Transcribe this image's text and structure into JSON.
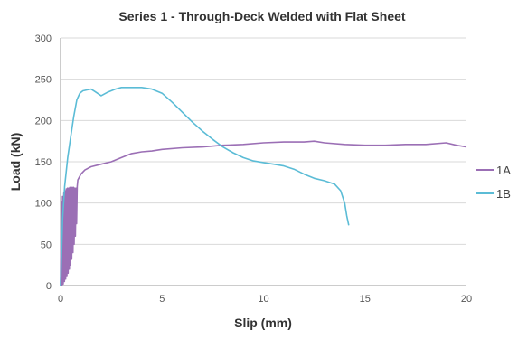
{
  "chart_data": {
    "type": "line",
    "title": "Series 1 - Through-Deck Welded with Flat Sheet",
    "xlabel": "Slip (mm)",
    "ylabel": "Load (kN)",
    "xlim": [
      0,
      20
    ],
    "ylim": [
      0,
      300
    ],
    "x_ticks": [
      0,
      5,
      10,
      15,
      20
    ],
    "y_ticks": [
      0,
      50,
      100,
      150,
      200,
      250,
      300
    ],
    "grid": "horizontal",
    "legend_position": "right",
    "series": [
      {
        "name": "1A",
        "color": "#9b6fb5",
        "points": [
          [
            0.0,
            0
          ],
          [
            0.04,
            102
          ],
          [
            0.07,
            0
          ],
          [
            0.1,
            108
          ],
          [
            0.13,
            2
          ],
          [
            0.16,
            112
          ],
          [
            0.19,
            5
          ],
          [
            0.22,
            115
          ],
          [
            0.25,
            8
          ],
          [
            0.28,
            117
          ],
          [
            0.31,
            12
          ],
          [
            0.34,
            118
          ],
          [
            0.37,
            15
          ],
          [
            0.4,
            118
          ],
          [
            0.43,
            20
          ],
          [
            0.46,
            119
          ],
          [
            0.49,
            25
          ],
          [
            0.52,
            119
          ],
          [
            0.55,
            32
          ],
          [
            0.58,
            119
          ],
          [
            0.61,
            40
          ],
          [
            0.64,
            119
          ],
          [
            0.67,
            50
          ],
          [
            0.7,
            118
          ],
          [
            0.73,
            60
          ],
          [
            0.76,
            118
          ],
          [
            0.79,
            75
          ],
          [
            0.82,
            120
          ],
          [
            0.85,
            128
          ],
          [
            1.0,
            135
          ],
          [
            1.2,
            140
          ],
          [
            1.5,
            144
          ],
          [
            2.0,
            147
          ],
          [
            2.5,
            150
          ],
          [
            3.0,
            155
          ],
          [
            3.5,
            160
          ],
          [
            4.0,
            162
          ],
          [
            4.5,
            163
          ],
          [
            5.0,
            165
          ],
          [
            6.0,
            167
          ],
          [
            7.0,
            168
          ],
          [
            8.0,
            170
          ],
          [
            9.0,
            171
          ],
          [
            10.0,
            173
          ],
          [
            11.0,
            174
          ],
          [
            12.0,
            174
          ],
          [
            12.5,
            175
          ],
          [
            13.0,
            173
          ],
          [
            14.0,
            171
          ],
          [
            15.0,
            170
          ],
          [
            16.0,
            170
          ],
          [
            17.0,
            171
          ],
          [
            18.0,
            171
          ],
          [
            19.0,
            173
          ],
          [
            19.5,
            170
          ],
          [
            20.0,
            168
          ]
        ]
      },
      {
        "name": "1B",
        "color": "#5bbcd6",
        "points": [
          [
            0.0,
            0
          ],
          [
            0.1,
            80
          ],
          [
            0.2,
            120
          ],
          [
            0.35,
            155
          ],
          [
            0.5,
            180
          ],
          [
            0.65,
            205
          ],
          [
            0.8,
            225
          ],
          [
            0.95,
            233
          ],
          [
            1.1,
            236
          ],
          [
            1.3,
            237
          ],
          [
            1.5,
            238
          ],
          [
            1.7,
            235
          ],
          [
            2.0,
            230
          ],
          [
            2.3,
            234
          ],
          [
            2.7,
            238
          ],
          [
            3.0,
            240
          ],
          [
            3.5,
            240
          ],
          [
            4.0,
            240
          ],
          [
            4.5,
            238
          ],
          [
            5.0,
            233
          ],
          [
            5.5,
            222
          ],
          [
            6.0,
            210
          ],
          [
            6.5,
            198
          ],
          [
            7.0,
            187
          ],
          [
            7.5,
            177
          ],
          [
            8.0,
            168
          ],
          [
            8.5,
            161
          ],
          [
            9.0,
            155
          ],
          [
            9.5,
            151
          ],
          [
            10.0,
            149
          ],
          [
            10.5,
            147
          ],
          [
            11.0,
            145
          ],
          [
            11.5,
            141
          ],
          [
            12.0,
            135
          ],
          [
            12.5,
            130
          ],
          [
            13.0,
            127
          ],
          [
            13.5,
            123
          ],
          [
            13.8,
            115
          ],
          [
            14.0,
            100
          ],
          [
            14.1,
            85
          ],
          [
            14.2,
            73
          ]
        ]
      }
    ]
  }
}
